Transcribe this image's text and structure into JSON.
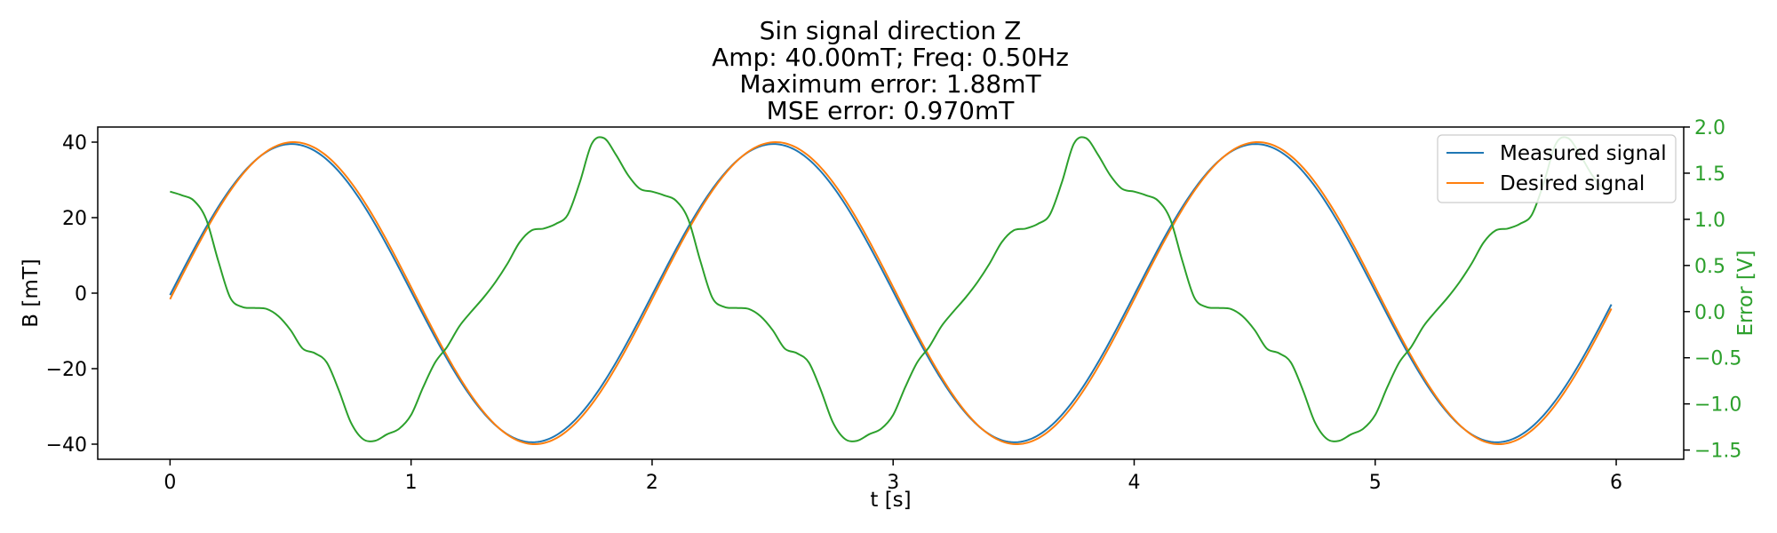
{
  "chart_data": {
    "type": "line",
    "title_lines": [
      "Sin signal direction Z",
      "Amp: 40.00mT; Freq: 0.50Hz",
      "Maximum error: 1.88mT",
      "MSE error: 0.970mT"
    ],
    "xlabel": "t [s]",
    "ylabel": "B [mT]",
    "y2label": "Error [V]",
    "xlim": [
      -0.3,
      6.28
    ],
    "ylim": [
      -44,
      44
    ],
    "y2lim": [
      -1.6,
      2.0
    ],
    "xticks": [
      0,
      1,
      2,
      3,
      4,
      5,
      6
    ],
    "yticks": [
      -40,
      -20,
      0,
      20,
      40
    ],
    "y2ticks": [
      -1.5,
      -1.0,
      -0.5,
      0.0,
      0.5,
      1.0,
      1.5,
      2.0
    ],
    "xtick_labels": [
      "0",
      "1",
      "2",
      "3",
      "4",
      "5",
      "6"
    ],
    "ytick_labels": [
      "−40",
      "−20",
      "0",
      "20",
      "40"
    ],
    "y2tick_labels": [
      "−1.5",
      "−1.0",
      "−0.5",
      "0.0",
      "0.5",
      "1.0",
      "1.5",
      "2.0"
    ],
    "legend_position": "top-right",
    "grid": false,
    "colors": {
      "measured": "#1f77b4",
      "desired": "#ff7f0e",
      "error": "#2ca02c",
      "axis": "#000000"
    },
    "series": [
      {
        "name": "Measured signal",
        "axis": "left",
        "amplitude": 39.5,
        "frequency_hz": 0.5,
        "x": [
          0,
          0.25,
          0.5,
          0.75,
          1.0,
          1.25,
          1.5,
          1.75,
          2.0,
          2.25,
          2.5,
          2.75,
          3.0,
          3.25,
          3.5,
          3.75,
          4.0,
          4.25,
          4.5,
          4.75,
          5.0,
          5.25,
          5.5,
          5.75,
          5.98
        ],
        "values": [
          -0.5,
          28.5,
          39.5,
          27.7,
          -0.5,
          -28.8,
          -39.0,
          -27.6,
          0.4,
          28.1,
          39.5,
          27.7,
          -0.5,
          -28.8,
          -39.0,
          -27.6,
          0.4,
          28.1,
          39.5,
          27.7,
          -0.5,
          -28.8,
          -39.0,
          -27.6,
          -2.8
        ]
      },
      {
        "name": "Desired signal",
        "axis": "left",
        "amplitude": 40.0,
        "frequency_hz": 0.5,
        "x": [
          0,
          0.25,
          0.5,
          0.75,
          1.0,
          1.25,
          1.5,
          1.75,
          2.0,
          2.25,
          2.5,
          2.75,
          3.0,
          3.25,
          3.5,
          3.75,
          4.0,
          4.25,
          4.5,
          4.75,
          5.0,
          5.25,
          5.5,
          5.75,
          5.98
        ],
        "values": [
          -1.6,
          27.4,
          39.8,
          29.2,
          0.8,
          -27.4,
          -39.8,
          -29.2,
          -0.8,
          27.4,
          39.8,
          29.2,
          0.8,
          -27.4,
          -39.8,
          -29.2,
          -0.8,
          27.4,
          39.8,
          29.2,
          0.8,
          -27.4,
          -39.8,
          -29.2,
          -4.0
        ]
      },
      {
        "name": "",
        "axis": "right",
        "x": [
          0,
          0.05,
          0.1,
          0.15,
          0.2,
          0.25,
          0.3,
          0.35,
          0.4,
          0.45,
          0.5,
          0.55,
          0.6,
          0.65,
          0.7,
          0.75,
          0.8,
          0.85,
          0.9,
          0.95,
          1.0,
          1.05,
          1.1,
          1.15,
          1.2,
          1.25,
          1.3,
          1.35,
          1.4,
          1.45,
          1.5,
          1.55,
          1.6,
          1.65,
          1.7,
          1.75,
          1.8,
          1.85,
          1.9,
          1.95,
          2.0
        ],
        "values": [
          1.3,
          1.26,
          1.2,
          1.0,
          0.55,
          0.15,
          0.05,
          0.04,
          0.03,
          -0.05,
          -0.2,
          -0.4,
          -0.45,
          -0.55,
          -0.85,
          -1.2,
          -1.38,
          -1.4,
          -1.33,
          -1.27,
          -1.12,
          -0.82,
          -0.55,
          -0.38,
          -0.16,
          0.0,
          0.15,
          0.32,
          0.52,
          0.75,
          0.88,
          0.9,
          0.95,
          1.05,
          1.4,
          1.82,
          1.88,
          1.7,
          1.48,
          1.33,
          1.3
        ],
        "period_s": 2.0,
        "range_s": [
          0,
          5.98
        ]
      }
    ]
  }
}
